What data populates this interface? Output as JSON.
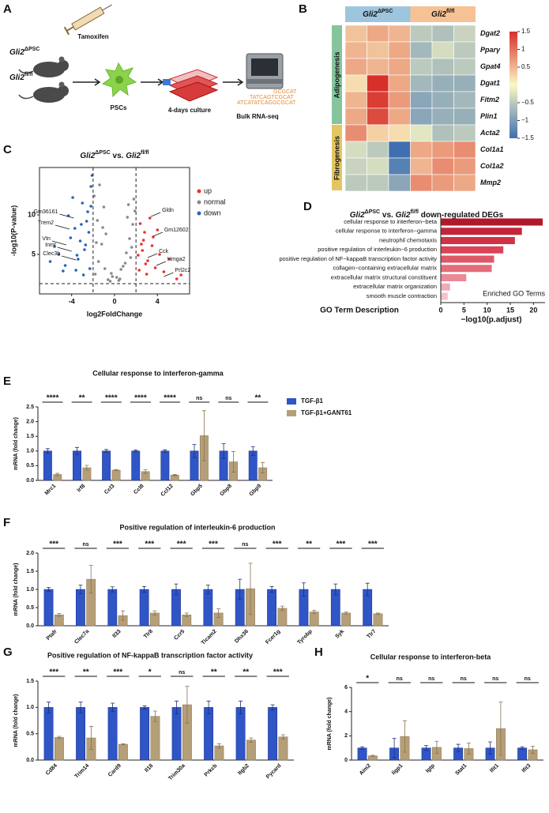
{
  "figure_a": {
    "panel": "A",
    "syringe_label": "Tamoxifen",
    "groups": [
      [
        {
          "text": "Gli2",
          "italic": true
        },
        {
          "text": "ΔPSC",
          "sup": true
        }
      ],
      [
        {
          "text": "Gli2",
          "italic": true
        },
        {
          "text": "fl/fl",
          "sup": true
        }
      ]
    ],
    "steps": [
      "PSCs",
      "4-days culture",
      "Bulk RNA-seq"
    ],
    "sequence": [
      "GCGCAT",
      "TATCAGTCGCAT",
      "ATCATATCAGGCGCAT"
    ]
  },
  "chart_data": [
    {
      "panel": "B",
      "type": "heatmap",
      "column_groups": [
        {
          "label": [
            {
              "text": "Gli2",
              "italic": true
            },
            {
              "text": "ΔPSC",
              "sup": true
            }
          ],
          "color": "#9ec5de"
        },
        {
          "label": [
            {
              "text": "Gli2",
              "italic": true
            },
            {
              "text": "fl/fl",
              "sup": true
            }
          ],
          "color": "#f6c293"
        }
      ],
      "row_groups": [
        {
          "label": "Adipogenesis",
          "color": "#86c59c",
          "rows": [
            "Dgat2",
            "Pparγ",
            "Gpat4",
            "Dgat1",
            "Fitm2",
            "Plin1"
          ],
          "values": [
            [
              0.4,
              0.6,
              0.5,
              -0.5,
              -0.6,
              -0.4
            ],
            [
              0.5,
              0.4,
              0.6,
              -0.7,
              -0.3,
              -0.5
            ],
            [
              0.6,
              0.5,
              0.6,
              -0.5,
              -0.6,
              -0.5
            ],
            [
              0.2,
              1.5,
              0.6,
              -0.7,
              -0.8,
              -0.8
            ],
            [
              0.5,
              1.4,
              0.7,
              -0.9,
              -0.8,
              -0.7
            ],
            [
              0.6,
              1.3,
              0.6,
              -0.9,
              -0.8,
              -0.8
            ]
          ]
        },
        {
          "label": "Fibrogenesis",
          "color": "#e3c662",
          "rows": [
            "Acta2",
            "Col1a1",
            "Col1a2",
            "Mmp2"
          ],
          "values": [
            [
              0.8,
              0.3,
              0.2,
              -0.2,
              -0.6,
              -0.5
            ],
            [
              -0.3,
              -0.5,
              -1.5,
              0.6,
              0.7,
              0.8
            ],
            [
              -0.4,
              -0.3,
              -1.3,
              0.5,
              0.8,
              0.7
            ],
            [
              -0.5,
              -0.5,
              -0.9,
              0.8,
              0.7,
              0.6
            ]
          ]
        }
      ],
      "clim": [
        -1.5,
        1.5
      ],
      "cticks": [
        1.5,
        1,
        0.5,
        {
          "value": -0.5,
          "label": "−0.5"
        },
        {
          "value": -1,
          "label": "−1"
        },
        {
          "value": -1.5,
          "label": "−1.5"
        }
      ],
      "colors": [
        "#3f6fb0",
        "#fbf8c4",
        "#d7302a"
      ]
    },
    {
      "panel": "C",
      "type": "scatter",
      "title": [
        {
          "text": "Gli2",
          "italic": true
        },
        {
          "text": "ΔPSC",
          "sup": true
        },
        {
          "text": " vs. "
        },
        {
          "text": "Gli2",
          "italic": true
        },
        {
          "text": "fl/fl",
          "sup": true
        }
      ],
      "xlabel": "log2FoldChange",
      "ylabel": "-log10(P-value)",
      "xlim": [
        -7,
        7
      ],
      "ylim": [
        0,
        16
      ],
      "xticks": [
        -4,
        0,
        4
      ],
      "yticks": [
        5,
        10
      ],
      "thresholds": {
        "x": [
          -2,
          2
        ],
        "y": 1.3
      },
      "legend": "upper right",
      "series": [
        {
          "name": "up",
          "color": "#e8332e",
          "x": [
            2.3,
            2.6,
            3.1,
            2.8,
            3.5,
            4.2,
            3.0,
            2.4,
            5.1,
            3.8,
            2.7,
            4.6,
            3.3,
            2.2,
            5.8,
            2.9,
            3.6,
            2.5,
            4.0,
            6.2
          ],
          "y": [
            3.0,
            5.5,
            4.2,
            7.8,
            6.1,
            5.0,
            2.5,
            8.9,
            4.4,
            3.3,
            6.8,
            2.8,
            9.6,
            4.9,
            1.9,
            3.8,
            7.2,
            6.3,
            8.1,
            2.4
          ]
        },
        {
          "name": "normal",
          "color": "#8a8a8a",
          "x": [
            -1.8,
            -1.5,
            -1.2,
            -0.9,
            -0.6,
            -0.3,
            0.2,
            0.5,
            0.8,
            1.1,
            1.4,
            1.7,
            1.9,
            -1.9,
            -1.6,
            -1.0,
            -0.4,
            0.4,
            1.0,
            1.6,
            -1.4,
            -0.8,
            1.2,
            1.8,
            -1.7,
            1.5,
            -1.1,
            1.3,
            -0.2,
            0.6
          ],
          "y": [
            2.5,
            4.1,
            6.3,
            3.2,
            1.8,
            2.6,
            2.1,
            1.9,
            3.5,
            5.2,
            7.0,
            8.8,
            10.5,
            12.4,
            9.3,
            11.0,
            1.6,
            1.7,
            3.9,
            5.9,
            13.8,
            7.6,
            9.7,
            12.0,
            6.5,
            4.6,
            8.4,
            11.3,
            2.2,
            3.1
          ]
        },
        {
          "name": "down",
          "color": "#2a64b4",
          "x": [
            -2.3,
            -2.8,
            -3.4,
            -4.1,
            -2.6,
            -3.0,
            -5.2,
            -3.7,
            -2.2,
            -4.6,
            -3.2,
            -2.5,
            -6.0,
            -3.9,
            -2.9,
            -4.3,
            -2.4,
            -3.5,
            -5.6,
            -2.1,
            -3.1,
            -4.8,
            -2.7,
            -3.6,
            -2.2
          ],
          "y": [
            3.2,
            5.6,
            4.4,
            7.1,
            9.2,
            11.5,
            5.0,
            8.3,
            13.6,
            3.6,
            6.7,
            10.4,
            4.1,
            12.2,
            2.4,
            9.9,
            7.8,
            4.9,
            6.0,
            15.0,
            8.8,
            2.9,
            6.2,
            3.0,
            11.1
          ]
        }
      ],
      "annotations": [
        {
          "label": "Gm36161",
          "x": -3.8,
          "y": 9.6
        },
        {
          "label": "Trem2",
          "x": -4.2,
          "y": 8.2
        },
        {
          "label": "Vtn",
          "x": -4.5,
          "y": 6.2
        },
        {
          "label": "Inmt",
          "x": -4.0,
          "y": 5.4
        },
        {
          "label": "Clec3b",
          "x": -3.6,
          "y": 4.3
        },
        {
          "label": "Gldn",
          "x": 3.4,
          "y": 9.8
        },
        {
          "label": "Gm12602",
          "x": 3.6,
          "y": 7.3
        },
        {
          "label": "Cck",
          "x": 3.1,
          "y": 4.6
        },
        {
          "label": "Hmga2",
          "x": 3.9,
          "y": 3.6
        },
        {
          "label": "Prl2c2",
          "x": 4.6,
          "y": 2.2
        }
      ]
    },
    {
      "panel": "D",
      "type": "bar",
      "orientation": "horizontal",
      "title": [
        {
          "text": "Gli2",
          "italic": true
        },
        {
          "text": "ΔPSC",
          "sup": true
        },
        {
          "text": " vs. "
        },
        {
          "text": "Gli2",
          "italic": true
        },
        {
          "text": "fl/fl",
          "sup": true
        },
        {
          "text": " down-regulated DEGs"
        }
      ],
      "categories": [
        "cellular response to interferon−beta",
        "cellular response to interferon−gamma",
        "neutrophil chemotaxis",
        "positive regulation of interleukin−6 production",
        "positive regulation of NF−kappaB transcription factor activity",
        "collagen−containing extracellular matrix",
        "extracellular matrix structural constituent",
        "extracellular matrix organization",
        "smooth muscle contraction"
      ],
      "values": [
        22,
        17.5,
        16,
        13.5,
        11.5,
        11,
        5.5,
        2,
        1.5
      ],
      "colors": [
        "#b2182b",
        "#c4243a",
        "#d03247",
        "#d94456",
        "#df5868",
        "#e46c7b",
        "#ea8a96",
        "#efaab3",
        "#f3c3ca"
      ],
      "xlim": [
        0,
        22.5
      ],
      "xticks": [
        0,
        5,
        10,
        15,
        20
      ],
      "xlabel": "−log10(p.adjust)",
      "ylabel": "GO Term Description",
      "annotation": "Enriched GO Terms"
    },
    {
      "panel": "E",
      "type": "bar",
      "title": "Cellular response to interferon-gamma",
      "ylabel": "mRNA (fold change)",
      "categories": [
        "Mrc1",
        "Irf8",
        "Ccl3",
        "Ccl8",
        "Ccl12",
        "Gbp5",
        "Gbp8",
        "Gbp9"
      ],
      "series": [
        {
          "name": "TGF-β1",
          "color": "#2f55c6",
          "values": [
            1,
            1,
            1,
            1,
            1,
            1,
            1,
            1
          ],
          "errors": [
            0.08,
            0.12,
            0.05,
            0.03,
            0.04,
            0.22,
            0.25,
            0.15
          ]
        },
        {
          "name": "TGF-β1+GANT61",
          "color": "#b59f78",
          "values": [
            0.2,
            0.43,
            0.35,
            0.3,
            0.18,
            1.52,
            0.63,
            0.43
          ],
          "errors": [
            0.04,
            0.08,
            0.02,
            0.06,
            0.02,
            0.85,
            0.35,
            0.18
          ]
        }
      ],
      "significance": [
        "****",
        "**",
        "****",
        "****",
        "****",
        "ns",
        "ns",
        "**"
      ],
      "ylim": [
        0,
        2.5
      ],
      "yticks": [
        {
          "value": 0,
          "label": "0.0"
        },
        0.5,
        {
          "value": 1,
          "label": "1.0"
        },
        1.5,
        {
          "value": 2,
          "label": "2.0"
        },
        2.5
      ],
      "legend": "right"
    },
    {
      "panel": "F",
      "type": "bar",
      "title": "Positive regulation of interleukin-6 production",
      "ylabel": "mRNA (fold change)",
      "categories": [
        "Ptafr",
        "Clec7a",
        "Il33",
        "Tlr8",
        "Ccr5",
        "Ticam2",
        "Dhx36",
        "Fcer1g",
        "Tyrobp",
        "Syk",
        "Tlr7"
      ],
      "series": [
        {
          "color": "#2f55c6",
          "values": [
            1,
            1,
            1,
            1,
            1,
            1,
            1,
            1,
            1,
            1,
            1
          ],
          "errors": [
            0.05,
            0.12,
            0.07,
            0.08,
            0.15,
            0.12,
            0.28,
            0.08,
            0.18,
            0.15,
            0.17
          ]
        },
        {
          "color": "#b59f78",
          "values": [
            0.3,
            1.28,
            0.28,
            0.35,
            0.3,
            0.35,
            1.02,
            0.48,
            0.38,
            0.35,
            0.33
          ],
          "errors": [
            0.04,
            0.38,
            0.13,
            0.06,
            0.05,
            0.12,
            0.7,
            0.06,
            0.04,
            0.03,
            0.02
          ]
        }
      ],
      "significance": [
        "***",
        "ns",
        "***",
        "***",
        "***",
        "***",
        "ns",
        "***",
        "**",
        "***",
        "***"
      ],
      "ylim": [
        0,
        2
      ],
      "yticks": [
        {
          "value": 0,
          "label": "0.0"
        },
        0.5,
        {
          "value": 1,
          "label": "1.0"
        },
        1.5,
        {
          "value": 2,
          "label": "2.0"
        }
      ]
    },
    {
      "panel": "G",
      "type": "bar",
      "title": "Positive regulation of NF-kappaB transcription factor activity",
      "ylabel": "mRNA (fold change)",
      "categories": [
        "Cd84",
        "Trim14",
        "Card9",
        "Il18",
        "Trim30a",
        "Prkcb",
        "Itgb2",
        "Pycard"
      ],
      "series": [
        {
          "color": "#2f55c6",
          "values": [
            1,
            1,
            1,
            1,
            1,
            1,
            1,
            1
          ],
          "errors": [
            0.1,
            0.1,
            0.08,
            0.03,
            0.12,
            0.12,
            0.12,
            0.05
          ]
        },
        {
          "color": "#b59f78",
          "values": [
            0.43,
            0.42,
            0.3,
            0.83,
            1.05,
            0.27,
            0.38,
            0.44
          ],
          "errors": [
            0.02,
            0.22,
            0.01,
            0.1,
            0.35,
            0.04,
            0.04,
            0.04
          ]
        }
      ],
      "significance": [
        "***",
        "**",
        "***",
        "*",
        "ns",
        "**",
        "**",
        "***"
      ],
      "ylim": [
        0,
        1.5
      ],
      "yticks": [
        {
          "value": 0,
          "label": "0.0"
        },
        0.5,
        {
          "value": 1,
          "label": "1.0"
        },
        1.5
      ]
    },
    {
      "panel": "H",
      "type": "bar",
      "title": "Cellular response to interferon-beta",
      "ylabel": "mRNA (fold change)",
      "categories": [
        "Aim2",
        "Iigp1",
        "Igtp",
        "Stat1",
        "Ifit1",
        "Ifit3"
      ],
      "series": [
        {
          "color": "#2f55c6",
          "values": [
            1,
            1,
            1,
            1,
            1,
            1
          ],
          "errors": [
            0.1,
            0.8,
            0.2,
            0.3,
            0.5,
            0.1
          ]
        },
        {
          "color": "#b59f78",
          "values": [
            0.35,
            1.95,
            1.05,
            0.95,
            2.6,
            0.85
          ],
          "errors": [
            0.05,
            1.3,
            0.5,
            0.45,
            2.2,
            0.3
          ]
        }
      ],
      "significance": [
        "*",
        "ns",
        "ns",
        "ns",
        "ns",
        "ns"
      ],
      "ylim": [
        0,
        6
      ],
      "yticks": [
        0,
        2,
        4,
        6
      ]
    }
  ]
}
